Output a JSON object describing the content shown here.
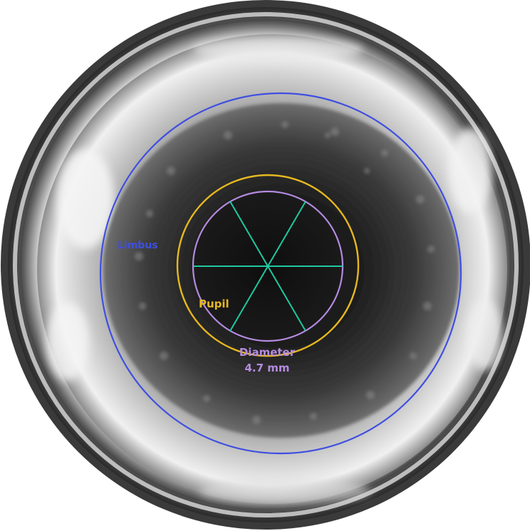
{
  "image": {
    "description_free": true,
    "labels": {
      "limbus": "Limbus",
      "pupil": "Pupil",
      "diameter": "Diameter",
      "diameter_value": "4.7 mm"
    },
    "colors": {
      "limbus": "#3f4fe0",
      "pupil": "#e6b820",
      "diameter_circle": "#b48be0",
      "spokes": "#1fc9a0"
    }
  }
}
